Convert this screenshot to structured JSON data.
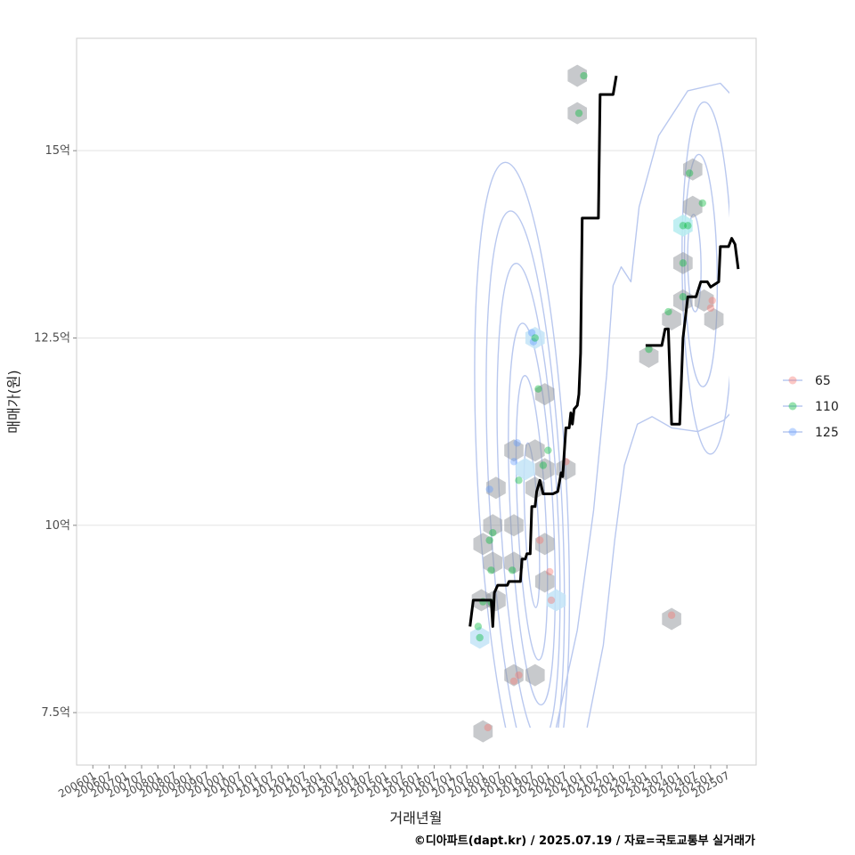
{
  "chart_data": {
    "type": "scatter",
    "xlabel": "거래년월",
    "ylabel": "매매가(원)",
    "caption": "©디아파트(dapt.kr) / 2025.07.19 / 자료=국토교통부 실거래가",
    "x_range": [
      2005.5,
      2026.4
    ],
    "ylim": [
      6.8,
      16.5
    ],
    "y_ticks": [
      {
        "value": 7.5,
        "label": "7.5억"
      },
      {
        "value": 10,
        "label": "10억"
      },
      {
        "value": 12.5,
        "label": "12.5억"
      },
      {
        "value": 15,
        "label": "15억"
      }
    ],
    "x_ticks": [
      {
        "value": 2006.0,
        "label": "200601"
      },
      {
        "value": 2006.5,
        "label": "200607"
      },
      {
        "value": 2007.0,
        "label": "200701"
      },
      {
        "value": 2007.5,
        "label": "200707"
      },
      {
        "value": 2008.0,
        "label": "200801"
      },
      {
        "value": 2008.5,
        "label": "200807"
      },
      {
        "value": 2009.0,
        "label": "200901"
      },
      {
        "value": 2009.5,
        "label": "200907"
      },
      {
        "value": 2010.0,
        "label": "201001"
      },
      {
        "value": 2010.5,
        "label": "201007"
      },
      {
        "value": 2011.0,
        "label": "201101"
      },
      {
        "value": 2011.5,
        "label": "201107"
      },
      {
        "value": 2012.0,
        "label": "201201"
      },
      {
        "value": 2012.5,
        "label": "201207"
      },
      {
        "value": 2013.0,
        "label": "201301"
      },
      {
        "value": 2013.5,
        "label": "201307"
      },
      {
        "value": 2014.0,
        "label": "201401"
      },
      {
        "value": 2014.5,
        "label": "201407"
      },
      {
        "value": 2015.0,
        "label": "201501"
      },
      {
        "value": 2015.5,
        "label": "201507"
      },
      {
        "value": 2016.0,
        "label": "201601"
      },
      {
        "value": 2016.5,
        "label": "201607"
      },
      {
        "value": 2017.0,
        "label": "201701"
      },
      {
        "value": 2017.5,
        "label": "201707"
      },
      {
        "value": 2018.0,
        "label": "201801"
      },
      {
        "value": 2018.5,
        "label": "201807"
      },
      {
        "value": 2019.0,
        "label": "201901"
      },
      {
        "value": 2019.5,
        "label": "201907"
      },
      {
        "value": 2020.0,
        "label": "202001"
      },
      {
        "value": 2020.5,
        "label": "202007"
      },
      {
        "value": 2021.0,
        "label": "202101"
      },
      {
        "value": 2021.5,
        "label": "202107"
      },
      {
        "value": 2022.0,
        "label": "202201"
      },
      {
        "value": 2022.5,
        "label": "202207"
      },
      {
        "value": 2023.0,
        "label": "202301"
      },
      {
        "value": 2023.5,
        "label": "202307"
      },
      {
        "value": 2024.0,
        "label": "202401"
      },
      {
        "value": 2024.5,
        "label": "202407"
      },
      {
        "value": 2025.0,
        "label": "202501"
      },
      {
        "value": 2025.5,
        "label": "202507"
      }
    ],
    "legend": {
      "placement": "right",
      "items": [
        {
          "name": "65",
          "color": "#F8766D"
        },
        {
          "name": "110",
          "color": "#00BA38"
        },
        {
          "name": "125",
          "color": "#619CFF"
        }
      ]
    },
    "hexbins": [
      {
        "x": 2018.0,
        "y": 7.25,
        "c": "#8f9499"
      },
      {
        "x": 2017.9,
        "y": 8.5,
        "c": "#c3e4f7"
      },
      {
        "x": 2017.95,
        "y": 9.0,
        "c": "#8f9499"
      },
      {
        "x": 2018.4,
        "y": 9.0,
        "c": "#8f9499"
      },
      {
        "x": 2018.0,
        "y": 9.75,
        "c": "#8f9499"
      },
      {
        "x": 2018.3,
        "y": 10.0,
        "c": "#8f9499"
      },
      {
        "x": 2018.3,
        "y": 9.5,
        "c": "#8f9499"
      },
      {
        "x": 2018.4,
        "y": 10.5,
        "c": "#8f9499"
      },
      {
        "x": 2018.95,
        "y": 9.5,
        "c": "#8f9499"
      },
      {
        "x": 2018.95,
        "y": 10.0,
        "c": "#8f9499"
      },
      {
        "x": 2018.95,
        "y": 8.0,
        "c": "#8f9499"
      },
      {
        "x": 2019.6,
        "y": 8.0,
        "c": "#8f9499"
      },
      {
        "x": 2018.95,
        "y": 11.0,
        "c": "#8f9499"
      },
      {
        "x": 2019.3,
        "y": 10.75,
        "c": "#c3e4f7"
      },
      {
        "x": 2019.6,
        "y": 11.0,
        "c": "#8f9499"
      },
      {
        "x": 2019.6,
        "y": 10.5,
        "c": "#8f9499"
      },
      {
        "x": 2019.9,
        "y": 10.75,
        "c": "#8f9499"
      },
      {
        "x": 2020.55,
        "y": 10.75,
        "c": "#8f9499"
      },
      {
        "x": 2019.6,
        "y": 12.5,
        "c": "#c3e4f7"
      },
      {
        "x": 2019.9,
        "y": 11.75,
        "c": "#8f9499"
      },
      {
        "x": 2019.9,
        "y": 9.75,
        "c": "#8f9499"
      },
      {
        "x": 2019.9,
        "y": 9.25,
        "c": "#8f9499"
      },
      {
        "x": 2020.25,
        "y": 9.0,
        "c": "#c3e4f7"
      },
      {
        "x": 2020.9,
        "y": 16.0,
        "c": "#8f9499"
      },
      {
        "x": 2020.9,
        "y": 15.5,
        "c": "#8f9499"
      },
      {
        "x": 2023.1,
        "y": 12.25,
        "c": "#8f9499"
      },
      {
        "x": 2023.8,
        "y": 12.75,
        "c": "#8f9499"
      },
      {
        "x": 2023.8,
        "y": 8.75,
        "c": "#8f9499"
      },
      {
        "x": 2024.15,
        "y": 14.0,
        "c": "#b6ecf0"
      },
      {
        "x": 2024.15,
        "y": 13.5,
        "c": "#8f9499"
      },
      {
        "x": 2024.15,
        "y": 13.0,
        "c": "#8f9499"
      },
      {
        "x": 2024.45,
        "y": 14.75,
        "c": "#8f9499"
      },
      {
        "x": 2024.45,
        "y": 14.25,
        "c": "#8f9499"
      },
      {
        "x": 2024.8,
        "y": 13.0,
        "c": "#8f9499"
      },
      {
        "x": 2025.1,
        "y": 12.75,
        "c": "#8f9499"
      }
    ],
    "points": [
      {
        "series": "110",
        "x": 2017.85,
        "y": 8.65
      },
      {
        "series": "110",
        "x": 2017.9,
        "y": 8.5
      },
      {
        "series": "65",
        "x": 2018.15,
        "y": 7.3
      },
      {
        "series": "110",
        "x": 2018.0,
        "y": 8.98
      },
      {
        "series": "110",
        "x": 2018.25,
        "y": 8.97
      },
      {
        "series": "110",
        "x": 2018.2,
        "y": 9.8
      },
      {
        "series": "110",
        "x": 2018.3,
        "y": 9.9
      },
      {
        "series": "110",
        "x": 2018.25,
        "y": 9.4
      },
      {
        "series": "125",
        "x": 2018.2,
        "y": 10.48
      },
      {
        "series": "110",
        "x": 2018.9,
        "y": 9.4
      },
      {
        "series": "65",
        "x": 2018.95,
        "y": 7.92
      },
      {
        "series": "65",
        "x": 2019.1,
        "y": 8.0
      },
      {
        "series": "125",
        "x": 2019.05,
        "y": 11.1
      },
      {
        "series": "110",
        "x": 2019.1,
        "y": 10.6
      },
      {
        "series": "125",
        "x": 2018.95,
        "y": 10.85
      },
      {
        "series": "125",
        "x": 2019.5,
        "y": 12.57
      },
      {
        "series": "125",
        "x": 2019.55,
        "y": 12.45
      },
      {
        "series": "110",
        "x": 2019.6,
        "y": 12.5
      },
      {
        "series": "110",
        "x": 2019.7,
        "y": 11.82
      },
      {
        "series": "110",
        "x": 2020.0,
        "y": 11.0
      },
      {
        "series": "110",
        "x": 2019.85,
        "y": 10.8
      },
      {
        "series": "65",
        "x": 2019.75,
        "y": 9.8
      },
      {
        "series": "65",
        "x": 2020.05,
        "y": 9.38
      },
      {
        "series": "65",
        "x": 2020.1,
        "y": 9.0
      },
      {
        "series": "65",
        "x": 2020.55,
        "y": 10.85
      },
      {
        "series": "110",
        "x": 2021.1,
        "y": 16.0
      },
      {
        "series": "110",
        "x": 2020.95,
        "y": 15.5
      },
      {
        "series": "110",
        "x": 2023.1,
        "y": 12.35
      },
      {
        "series": "110",
        "x": 2023.7,
        "y": 12.85
      },
      {
        "series": "65",
        "x": 2023.8,
        "y": 8.8
      },
      {
        "series": "110",
        "x": 2024.15,
        "y": 14.0
      },
      {
        "series": "110",
        "x": 2024.3,
        "y": 14.0
      },
      {
        "series": "110",
        "x": 2024.35,
        "y": 14.7
      },
      {
        "series": "110",
        "x": 2024.15,
        "y": 13.5
      },
      {
        "series": "110",
        "x": 2024.15,
        "y": 13.05
      },
      {
        "series": "110",
        "x": 2024.75,
        "y": 14.3
      },
      {
        "series": "65",
        "x": 2025.0,
        "y": 12.9
      },
      {
        "series": "65",
        "x": 2025.05,
        "y": 13.0
      }
    ],
    "trend_segments": [
      [
        [
          2017.6,
          8.65
        ],
        [
          2017.7,
          9.0
        ],
        [
          2018.25,
          9.0
        ],
        [
          2018.3,
          8.65
        ],
        [
          2018.35,
          9.1
        ],
        [
          2018.45,
          9.2
        ],
        [
          2018.75,
          9.2
        ],
        [
          2018.8,
          9.25
        ],
        [
          2019.15,
          9.25
        ],
        [
          2019.2,
          9.55
        ],
        [
          2019.3,
          9.55
        ],
        [
          2019.35,
          9.62
        ],
        [
          2019.45,
          9.62
        ],
        [
          2019.5,
          10.25
        ],
        [
          2019.6,
          10.25
        ],
        [
          2019.65,
          10.45
        ],
        [
          2019.75,
          10.6
        ],
        [
          2019.85,
          10.42
        ],
        [
          2020.15,
          10.42
        ],
        [
          2020.3,
          10.45
        ],
        [
          2020.4,
          10.7
        ],
        [
          2020.45,
          10.65
        ],
        [
          2020.55,
          11.3
        ],
        [
          2020.65,
          11.3
        ],
        [
          2020.7,
          11.5
        ],
        [
          2020.75,
          11.35
        ],
        [
          2020.8,
          11.55
        ],
        [
          2020.9,
          11.6
        ],
        [
          2020.95,
          11.75
        ],
        [
          2021.0,
          12.3
        ],
        [
          2021.05,
          14.1
        ],
        [
          2021.55,
          14.1
        ],
        [
          2021.6,
          15.75
        ],
        [
          2022.0,
          15.75
        ],
        [
          2022.1,
          16.0
        ]
      ],
      [
        [
          2023.0,
          12.4
        ],
        [
          2023.5,
          12.4
        ],
        [
          2023.6,
          12.62
        ],
        [
          2023.7,
          12.62
        ],
        [
          2023.8,
          11.35
        ],
        [
          2024.05,
          11.35
        ],
        [
          2024.15,
          12.5
        ],
        [
          2024.3,
          13.05
        ],
        [
          2024.55,
          13.05
        ],
        [
          2024.7,
          13.25
        ],
        [
          2024.9,
          13.25
        ],
        [
          2025.0,
          13.18
        ],
        [
          2025.25,
          13.25
        ],
        [
          2025.3,
          13.72
        ],
        [
          2025.55,
          13.72
        ],
        [
          2025.65,
          13.83
        ],
        [
          2025.75,
          13.75
        ],
        [
          2025.85,
          13.42
        ]
      ]
    ],
    "density_contours": [
      {
        "cx": 2019.5,
        "cy": 10.0,
        "rx": 0.45,
        "ry": 1.1,
        "rot": 0.14
      },
      {
        "cx": 2019.5,
        "cy": 10.1,
        "rx": 0.95,
        "ry": 1.9,
        "rot": 0.14
      },
      {
        "cx": 2019.5,
        "cy": 10.15,
        "rx": 1.45,
        "ry": 2.55,
        "rot": 0.14
      },
      {
        "cx": 2019.4,
        "cy": 10.3,
        "rx": 1.95,
        "ry": 3.2,
        "rot": 0.15
      },
      {
        "cx": 2019.3,
        "cy": 10.4,
        "rx": 2.45,
        "ry": 3.8,
        "rot": 0.15
      },
      {
        "cx": 2019.2,
        "cy": 10.55,
        "rx": 3.0,
        "ry": 4.3,
        "rot": 0.15
      },
      {
        "cx": 2024.5,
        "cy": 13.5,
        "rx": 0.45,
        "ry": 0.65,
        "rot": 0.05
      },
      {
        "cx": 2024.7,
        "cy": 13.4,
        "rx": 1.1,
        "ry": 1.55,
        "rot": 0.05
      },
      {
        "cx": 2024.9,
        "cy": 13.3,
        "rx": 1.7,
        "ry": 2.35,
        "rot": 0.05
      }
    ],
    "density_outer_path": [
      [
        2020.25,
        7.3
      ],
      [
        2020.9,
        8.6
      ],
      [
        2021.4,
        10.2
      ],
      [
        2021.8,
        12.0
      ],
      [
        2022.0,
        13.2
      ],
      [
        2022.25,
        13.45
      ],
      [
        2022.55,
        13.25
      ],
      [
        2022.8,
        14.25
      ],
      [
        2023.4,
        15.2
      ],
      [
        2024.3,
        15.8
      ],
      [
        2025.3,
        15.9
      ],
      [
        2025.95,
        15.6
      ]
    ],
    "density_outer_path2": [
      [
        2021.2,
        7.3
      ],
      [
        2021.7,
        8.4
      ],
      [
        2022.05,
        9.8
      ],
      [
        2022.35,
        10.8
      ],
      [
        2022.75,
        11.35
      ],
      [
        2023.2,
        11.45
      ],
      [
        2023.8,
        11.3
      ],
      [
        2024.6,
        11.25
      ],
      [
        2025.4,
        11.4
      ],
      [
        2025.95,
        11.65
      ]
    ]
  }
}
